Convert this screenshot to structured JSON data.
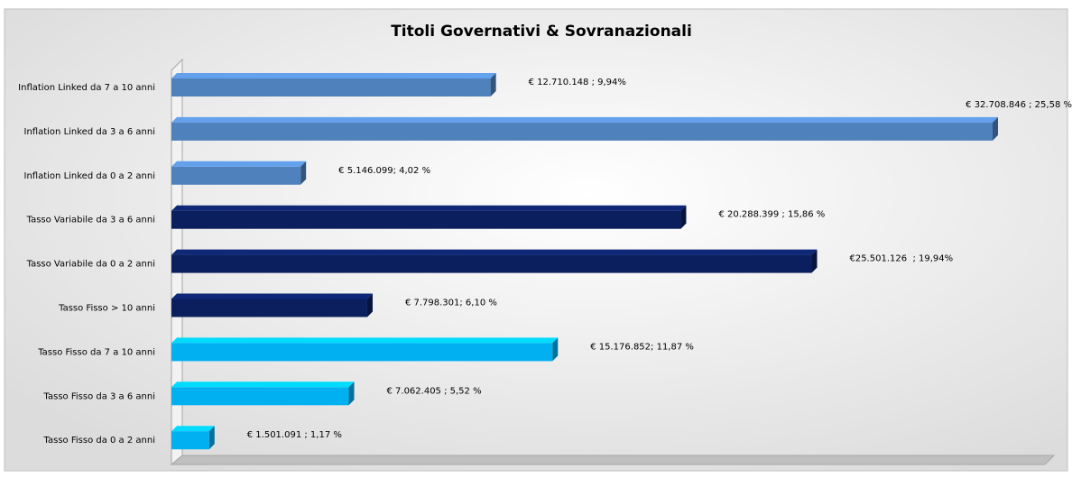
{
  "chart_data": {
    "type": "bar",
    "orientation": "horizontal",
    "title": "Titoli Governativi & Sovranazionali",
    "categories": [
      "Inflation Linked da 7 a 10 anni",
      "Inflation Linked da 3 a 6 anni",
      "Inflation Linked da 0 a 2 anni",
      "Tasso Variabile da 3 a 6 anni",
      "Tasso Variabile da 0 a 2 anni",
      "Tasso Fisso > 10 anni",
      "Tasso Fisso da 7 a 10 anni",
      "Tasso Fisso da 3 a 6 anni",
      "Tasso Fisso da 0 a 2 anni"
    ],
    "values": [
      12710148,
      32708846,
      5146099,
      20288399,
      25501126,
      7798301,
      15176852,
      7062405,
      1501091
    ],
    "value_labels": [
      "€ 12.710.148 ; 9,94%",
      "€ 32.708.846 ; 25,58 %",
      "€ 5.146.099; 4,02 %",
      "€ 20.288.399 ; 15,86 %",
      "€25.501.126  ; 19,94%",
      "€ 7.798.301; 6,10 %",
      "€ 15.176.852; 11,87 %",
      "€ 7.062.405 ; 5,52 %",
      "€ 1.501.091 ; 1,17 %"
    ],
    "colors": [
      "#4f81bd",
      "#4f81bd",
      "#4f81bd",
      "#0b1f5e",
      "#0b1f5e",
      "#0b1f5e",
      "#00b0f0",
      "#00b0f0",
      "#00b0f0"
    ]
  }
}
